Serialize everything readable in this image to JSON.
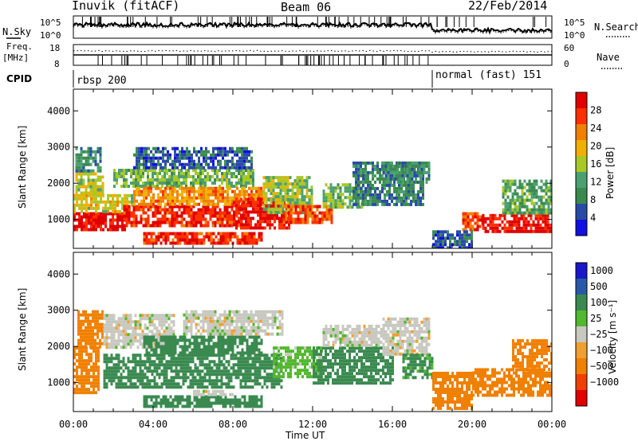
{
  "header": {
    "station": "Inuvik (fitACF)",
    "beam": "Beam 06",
    "date": "22/Feb/2014"
  },
  "noise_panel": {
    "left_label": "N.Sky",
    "right_label": "N.Search",
    "ticks_left": [
      "10^5",
      "10^0"
    ],
    "ticks_right": [
      "10^5",
      "10^0"
    ]
  },
  "freq_panel": {
    "left_label_1": "Freq.",
    "left_label_2": "[MHz]",
    "left_ticks": [
      "18",
      "8"
    ],
    "right_label": "Nave",
    "right_ticks": [
      "60",
      "0"
    ]
  },
  "cpid_panel": {
    "label": "CPID",
    "modes": [
      {
        "name": "rbsp 200",
        "start_hour": 0
      },
      {
        "name": "normal (fast) 151",
        "start_hour": 18
      }
    ]
  },
  "colors": {
    "power": [
      "#1010e0",
      "#2a4aa8",
      "#3a8a50",
      "#4aa070",
      "#a8c828",
      "#f0b000",
      "#f08000",
      "#ff3000",
      "#e00000"
    ],
    "velocity_pos": [
      "#1818c8",
      "#2a58a8",
      "#3a8a50",
      "#52b82e"
    ],
    "velocity_zero": "#c8c8c0",
    "velocity_neg": [
      "#f0a030",
      "#f08000",
      "#f04000",
      "#e00000"
    ]
  },
  "chart_data": [
    {
      "type": "heatmap",
      "name": "power",
      "ylabel": "Slant Range [km]",
      "yticks": [
        "1000",
        "2000",
        "3000",
        "4000"
      ],
      "ylim": [
        200,
        4600
      ],
      "xlim": [
        0,
        24
      ],
      "colorbar_label": "Power [dB]",
      "colorbar_ticks": [
        "4",
        "8",
        "12",
        "16",
        "20",
        "24",
        "28"
      ],
      "colorbar_range": [
        0,
        32
      ],
      "bands": [
        {
          "t0": 0.0,
          "t1": 2.6,
          "r0": 700,
          "r1": 1200,
          "value": 30
        },
        {
          "t0": 0.0,
          "t1": 3.0,
          "r0": 1200,
          "r1": 1700,
          "value": 18
        },
        {
          "t0": 0.1,
          "t1": 1.5,
          "r0": 1700,
          "r1": 2300,
          "value": 16
        },
        {
          "t0": 0.1,
          "t1": 1.4,
          "r0": 2300,
          "r1": 3000,
          "value": 10
        },
        {
          "t0": 2.0,
          "t1": 9.0,
          "r0": 1900,
          "r1": 2400,
          "value": 14
        },
        {
          "t0": 2.5,
          "t1": 8.5,
          "r0": 800,
          "r1": 1400,
          "value": 28
        },
        {
          "t0": 3.0,
          "t1": 9.5,
          "r0": 1400,
          "r1": 1900,
          "value": 22
        },
        {
          "t0": 3.5,
          "t1": 9.5,
          "r0": 300,
          "r1": 650,
          "value": 28
        },
        {
          "t0": 8.0,
          "t1": 10.8,
          "r0": 800,
          "r1": 1600,
          "value": 30
        },
        {
          "t0": 9.5,
          "t1": 12.0,
          "r0": 1200,
          "r1": 2200,
          "value": 16
        },
        {
          "t0": 10.5,
          "t1": 13.0,
          "r0": 900,
          "r1": 1400,
          "value": 26
        },
        {
          "t0": 12.5,
          "t1": 14.5,
          "r0": 1300,
          "r1": 2000,
          "value": 14
        },
        {
          "t0": 14.0,
          "t1": 17.5,
          "r0": 1400,
          "r1": 2600,
          "value": 8
        },
        {
          "t0": 15.5,
          "t1": 17.8,
          "r0": 2000,
          "r1": 2600,
          "value": 10
        },
        {
          "t0": 19.5,
          "t1": 20.5,
          "r0": 700,
          "r1": 1200,
          "value": 26
        },
        {
          "t0": 20.5,
          "t1": 24.0,
          "r0": 650,
          "r1": 1150,
          "value": 30
        },
        {
          "t0": 21.5,
          "t1": 24.0,
          "r0": 1200,
          "r1": 2100,
          "value": 12
        },
        {
          "t0": 18.0,
          "t1": 20.0,
          "r0": 200,
          "r1": 700,
          "value": 6
        },
        {
          "t0": 3.0,
          "t1": 9.0,
          "r0": 2400,
          "r1": 3000,
          "value": 6
        }
      ]
    },
    {
      "type": "heatmap",
      "name": "velocity",
      "ylabel": "Slant Range [km]",
      "yticks": [
        "1000",
        "2000",
        "3000",
        "4000"
      ],
      "ylim": [
        200,
        4600
      ],
      "xlim": [
        0,
        24
      ],
      "xlabel": "Time UT",
      "xticks": [
        "00:00",
        "04:00",
        "08:00",
        "12:00",
        "16:00",
        "20:00",
        "00:00"
      ],
      "colorbar_label": "Velocity [m s⁻¹]",
      "colorbar_ticks": [
        "1000",
        "500",
        "100",
        "25",
        "−25",
        "−100",
        "−500",
        "−1000"
      ],
      "bands": [
        {
          "t0": 0.0,
          "t1": 1.3,
          "r0": 700,
          "r1": 2000,
          "value": -300
        },
        {
          "t0": 0.2,
          "t1": 1.5,
          "r0": 2000,
          "r1": 3000,
          "value": -200
        },
        {
          "t0": 1.5,
          "t1": 5.0,
          "r0": 2000,
          "r1": 2900,
          "value": 0
        },
        {
          "t0": 1.5,
          "t1": 10.5,
          "r0": 900,
          "r1": 1800,
          "value": 200
        },
        {
          "t0": 3.5,
          "t1": 9.5,
          "r0": 1800,
          "r1": 2300,
          "value": 150
        },
        {
          "t0": 5.5,
          "t1": 10.5,
          "r0": 2300,
          "r1": 3000,
          "value": 0
        },
        {
          "t0": 3.5,
          "t1": 9.5,
          "r0": 300,
          "r1": 650,
          "value": 250
        },
        {
          "t0": 6.0,
          "t1": 8.0,
          "r0": 650,
          "r1": 800,
          "value": 0
        },
        {
          "t0": 10.0,
          "t1": 12.5,
          "r0": 1200,
          "r1": 2000,
          "value": 50
        },
        {
          "t0": 12.0,
          "t1": 16.0,
          "r0": 1000,
          "r1": 2000,
          "value": 180
        },
        {
          "t0": 12.5,
          "t1": 15.5,
          "r0": 2000,
          "r1": 2600,
          "value": 0
        },
        {
          "t0": 15.5,
          "t1": 17.8,
          "r0": 1800,
          "r1": 2800,
          "value": 0
        },
        {
          "t0": 16.5,
          "t1": 18.0,
          "r0": 1100,
          "r1": 1800,
          "value": 120
        },
        {
          "t0": 18.0,
          "t1": 20.0,
          "r0": 300,
          "r1": 1300,
          "value": -200
        },
        {
          "t0": 20.0,
          "t1": 24.0,
          "r0": 650,
          "r1": 1400,
          "value": -400
        },
        {
          "t0": 22.0,
          "t1": 24.0,
          "r0": 1400,
          "r1": 2200,
          "value": -150
        }
      ]
    }
  ]
}
